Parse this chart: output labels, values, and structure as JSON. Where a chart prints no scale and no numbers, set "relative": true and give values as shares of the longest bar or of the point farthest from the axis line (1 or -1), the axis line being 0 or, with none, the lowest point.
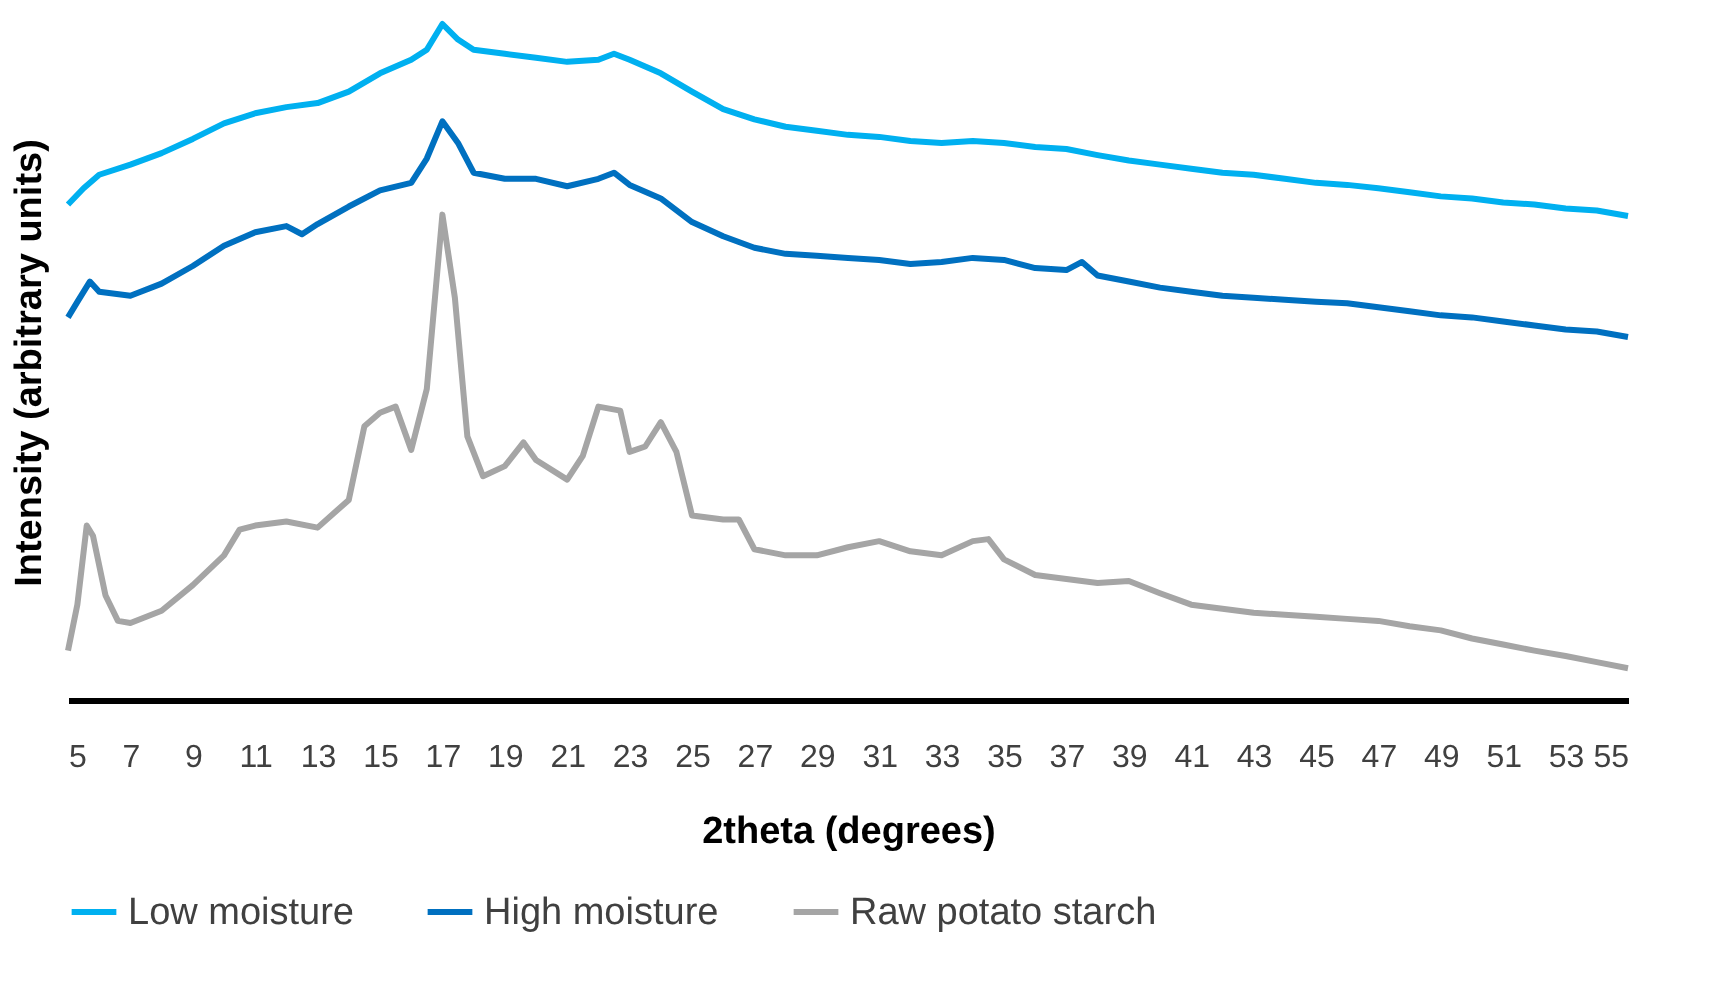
{
  "chart_data": {
    "type": "line",
    "relative": true,
    "xlabel": "2theta (degrees)",
    "ylabel": "Intensity (arbitrary units)",
    "xlim": [
      5,
      55
    ],
    "xticks": [
      5,
      7,
      9,
      11,
      13,
      15,
      17,
      19,
      21,
      23,
      25,
      27,
      29,
      31,
      33,
      35,
      37,
      39,
      41,
      43,
      45,
      47,
      49,
      51,
      53,
      55
    ],
    "grid": false,
    "legend": "bottom",
    "marker": "none",
    "line_style": "solid",
    "series": [
      {
        "name": "Low moisture",
        "color": "#00b0f0",
        "x": [
          5,
          5.5,
          6,
          7,
          8,
          9,
          10,
          11,
          12,
          13,
          14,
          15,
          16,
          16.5,
          17,
          17.5,
          18,
          19,
          20,
          21,
          22,
          22.5,
          23,
          24,
          25,
          26,
          27,
          28,
          29,
          30,
          31,
          32,
          33,
          34,
          35,
          36,
          37,
          38,
          39,
          40,
          41,
          42,
          43,
          44,
          45,
          46,
          47,
          48,
          49,
          50,
          51,
          52,
          53,
          54,
          55
        ],
        "values": [
          0.733,
          0.757,
          0.777,
          0.792,
          0.809,
          0.83,
          0.853,
          0.868,
          0.877,
          0.883,
          0.9,
          0.927,
          0.947,
          0.962,
          1.0,
          0.977,
          0.962,
          0.956,
          0.95,
          0.944,
          0.947,
          0.956,
          0.947,
          0.927,
          0.9,
          0.874,
          0.859,
          0.848,
          0.842,
          0.836,
          0.833,
          0.827,
          0.824,
          0.827,
          0.824,
          0.818,
          0.815,
          0.806,
          0.798,
          0.792,
          0.786,
          0.78,
          0.777,
          0.771,
          0.765,
          0.762,
          0.757,
          0.751,
          0.745,
          0.742,
          0.736,
          0.733,
          0.727,
          0.724,
          0.716
        ]
      },
      {
        "name": "High moisture",
        "color": "#0070c0",
        "x": [
          5,
          5.3,
          5.7,
          6,
          7,
          8,
          9,
          10,
          11,
          12,
          12.5,
          13,
          14,
          15,
          16,
          16.5,
          17,
          17.5,
          18,
          19,
          20,
          21,
          22,
          22.5,
          23,
          24,
          25,
          26,
          27,
          28,
          29,
          30,
          31,
          32,
          33,
          34,
          35,
          36,
          37,
          37.5,
          38,
          39,
          40,
          41,
          42,
          43,
          44,
          45,
          46,
          47,
          48,
          49,
          50,
          51,
          52,
          53,
          54,
          55
        ],
        "values": [
          0.566,
          0.589,
          0.619,
          0.604,
          0.598,
          0.616,
          0.642,
          0.672,
          0.692,
          0.701,
          0.689,
          0.704,
          0.73,
          0.754,
          0.765,
          0.801,
          0.856,
          0.824,
          0.78,
          0.771,
          0.771,
          0.76,
          0.771,
          0.78,
          0.762,
          0.742,
          0.707,
          0.686,
          0.669,
          0.66,
          0.657,
          0.654,
          0.651,
          0.645,
          0.648,
          0.654,
          0.651,
          0.639,
          0.636,
          0.648,
          0.628,
          0.619,
          0.61,
          0.604,
          0.598,
          0.595,
          0.592,
          0.589,
          0.587,
          0.581,
          0.575,
          0.569,
          0.566,
          0.56,
          0.554,
          0.548,
          0.545,
          0.537
        ]
      },
      {
        "name": "Raw potato starch",
        "color": "#a5a5a5",
        "x": [
          5,
          5.3,
          5.6,
          5.8,
          6.2,
          6.6,
          7,
          8,
          9,
          10,
          10.5,
          11,
          12,
          13,
          14,
          14.5,
          15,
          15.5,
          16,
          16.5,
          17,
          17.4,
          17.8,
          18.3,
          19,
          19.6,
          20,
          21,
          21.5,
          22,
          22.7,
          23,
          23.5,
          24,
          24.5,
          25,
          26,
          26.5,
          27,
          28,
          29,
          30,
          31,
          32,
          33,
          34,
          34.5,
          35,
          36,
          37,
          38,
          39,
          40,
          41,
          42,
          43,
          44,
          45,
          46,
          47,
          48,
          49,
          50,
          51,
          52,
          53,
          54,
          55
        ],
        "values": [
          0.073,
          0.141,
          0.258,
          0.243,
          0.155,
          0.117,
          0.114,
          0.132,
          0.17,
          0.214,
          0.252,
          0.258,
          0.264,
          0.255,
          0.296,
          0.405,
          0.425,
          0.434,
          0.37,
          0.46,
          0.718,
          0.595,
          0.39,
          0.331,
          0.346,
          0.381,
          0.355,
          0.326,
          0.361,
          0.434,
          0.428,
          0.367,
          0.375,
          0.411,
          0.367,
          0.273,
          0.267,
          0.267,
          0.223,
          0.214,
          0.214,
          0.226,
          0.235,
          0.22,
          0.214,
          0.235,
          0.238,
          0.208,
          0.185,
          0.179,
          0.173,
          0.176,
          0.158,
          0.141,
          0.135,
          0.129,
          0.126,
          0.123,
          0.12,
          0.117,
          0.109,
          0.103,
          0.091,
          0.082,
          0.073,
          0.065,
          0.056,
          0.047
        ]
      }
    ]
  }
}
